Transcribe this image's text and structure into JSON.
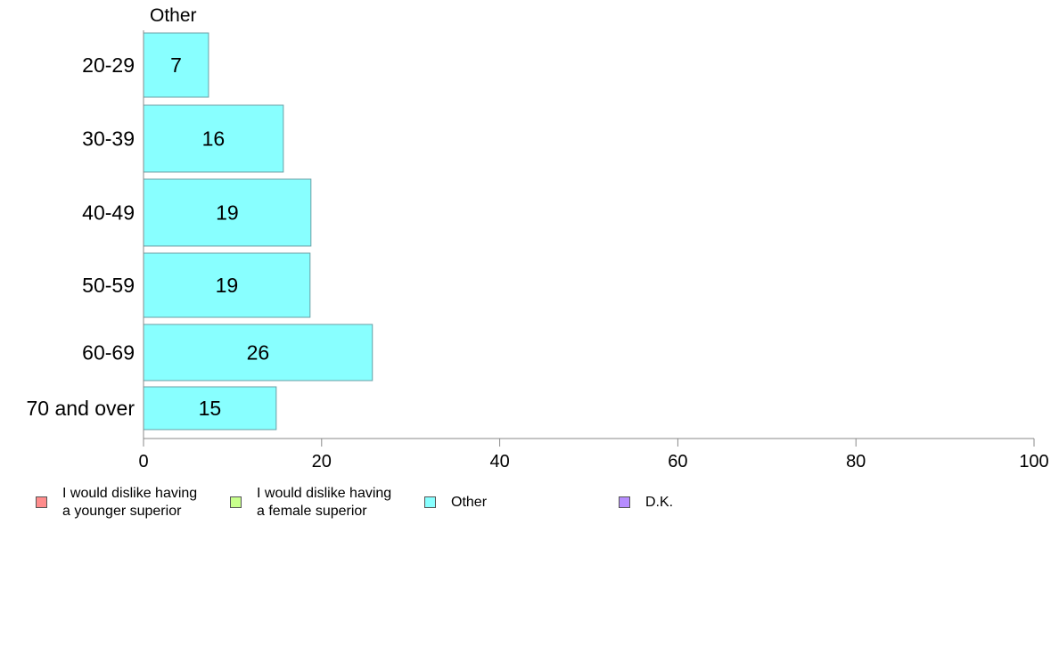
{
  "chart_data": {
    "type": "bar",
    "orientation": "horizontal",
    "title": "Other",
    "categories": [
      "20-29",
      "30-39",
      "40-49",
      "50-59",
      "60-69",
      "70 and over"
    ],
    "values": [
      7,
      16,
      19,
      19,
      26,
      15
    ],
    "bar_values": [
      7.3,
      15.7,
      18.8,
      18.7,
      25.7,
      14.9
    ],
    "xlim": [
      0,
      100
    ],
    "xticks": [
      0,
      20,
      40,
      60,
      80,
      100
    ],
    "bar_color": "#88ffff",
    "legend": {
      "placement": "bottom",
      "entries": [
        {
          "label": "I would dislike having\na younger superior",
          "color": "#ff8c8c"
        },
        {
          "label": "I would dislike having\na female superior",
          "color": "#c8ff8c"
        },
        {
          "label": "Other",
          "color": "#88ffff"
        },
        {
          "label": "D.K.",
          "color": "#b68cff"
        }
      ]
    }
  }
}
